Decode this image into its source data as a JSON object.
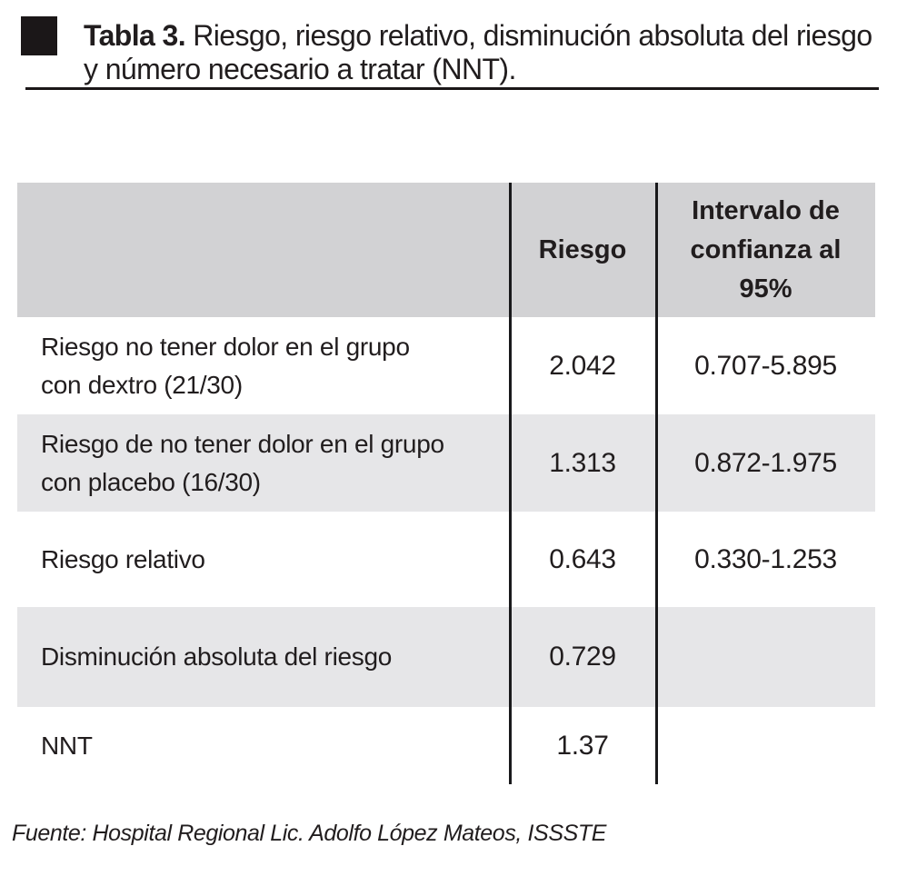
{
  "title": {
    "prefix": "Tabla 3. ",
    "text": "Riesgo, riesgo relativo, disminución absoluta del riesgo\ny número necesario a tratar (NNT)."
  },
  "table": {
    "columns": [
      {
        "key": "label",
        "header": ""
      },
      {
        "key": "riesgo",
        "header": "Riesgo"
      },
      {
        "key": "ic95",
        "header": "Intervalo de\nconfianza al\n95%"
      }
    ],
    "rows": [
      {
        "label": "Riesgo no tener dolor en el grupo\ncon dextro (21/30)",
        "riesgo": "2.042",
        "ic95": "0.707-5.895"
      },
      {
        "label": "Riesgo de no tener dolor en el grupo\ncon placebo (16/30)",
        "riesgo": "1.313",
        "ic95": "0.872-1.975"
      },
      {
        "label": "Riesgo relativo",
        "riesgo": "0.643",
        "ic95": "0.330-1.253"
      },
      {
        "label": "Disminución absoluta del riesgo",
        "riesgo": "0.729",
        "ic95": ""
      },
      {
        "label": "NNT",
        "riesgo": "1.37",
        "ic95": ""
      }
    ],
    "colors": {
      "header_bg": "#d2d2d4",
      "row_alt_bg": "#e6e6e8",
      "divider": "#19191b",
      "text": "#211d1e"
    }
  },
  "footer": {
    "source": "Fuente: Hospital Regional Lic. Adolfo López Mateos, ISSSTE"
  }
}
